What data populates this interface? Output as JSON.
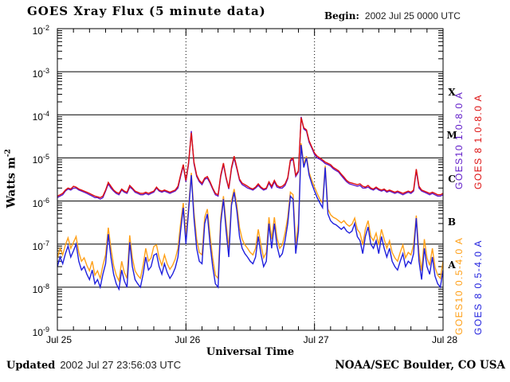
{
  "header": {
    "title": "GOES Xray Flux (5 minute data)",
    "begin_label": "Begin:",
    "begin_value": "2002 Jul 25 0000 UTC"
  },
  "footer": {
    "updated_label": "Updated",
    "updated_value": "2002 Jul 27 23:56:03 UTC",
    "credit": "NOAA/SEC Boulder, CO USA"
  },
  "chart_data": {
    "type": "line",
    "title": "GOES Xray Flux (5 minute data)",
    "xlabel": "Universal Time",
    "ylabel_text": "Watts m",
    "ylabel_sup": "-2",
    "y_scale": "log10",
    "ylim": [
      1e-09,
      0.01
    ],
    "y_tick_base": "10",
    "y_tick_exponents": [
      -2,
      -3,
      -4,
      -5,
      -6,
      -7,
      -8,
      -9
    ],
    "xlim_hours": [
      0,
      72
    ],
    "x_tick_hours": [
      0,
      24,
      48,
      72
    ],
    "x_tick_labels": [
      "Jul 25",
      "Jul 26",
      "Jul 27",
      "Jul 28"
    ],
    "minor_x_tick_interval_hours": 3,
    "day_boundary_lines_hours": [
      24,
      48
    ],
    "grid": "solid horizontal line per decade, dotted vertical line at day boundaries",
    "legend_position": "right side, rotated 90deg",
    "flux_classes": [
      {
        "label": "X",
        "center_exp": -3.5
      },
      {
        "label": "M",
        "center_exp": -4.5
      },
      {
        "label": "C",
        "center_exp": -5.5
      },
      {
        "label": "B",
        "center_exp": -6.5
      },
      {
        "label": "A",
        "center_exp": -7.5
      }
    ],
    "t_start_hours": 0,
    "dt_hours": 0.5,
    "series": [
      {
        "name": "GOES10 0.5-4.0 A",
        "color": "#ffa018",
        "values": [
          4.8e-08,
          8e-08,
          5.6e-08,
          9.6e-08,
          1.4e-07,
          8e-08,
          1.1e-07,
          1.5e-07,
          6.4e-08,
          4e-08,
          4.8e-08,
          3.2e-08,
          2.4e-08,
          4e-08,
          1.9e-08,
          2.4e-08,
          1.6e-08,
          3.2e-08,
          5.6e-08,
          2.4e-07,
          8e-08,
          3.2e-08,
          1.9e-08,
          1.4e-08,
          4e-08,
          2.2e-08,
          1.6e-08,
          1.6e-07,
          4.8e-08,
          2.4e-08,
          1.9e-08,
          1.6e-08,
          3.2e-08,
          8e-08,
          4e-08,
          4.8e-08,
          8.8e-08,
          9.6e-08,
          4.8e-08,
          3.2e-08,
          5.6e-08,
          3.5e-08,
          2.6e-08,
          3.2e-08,
          4.5e-08,
          8e-08,
          3e-07,
          9e-07,
          1.6e-07,
          7.5e-07,
          4.5e-06,
          5.5e-07,
          1.3e-07,
          6.4e-08,
          5.6e-08,
          4.2e-07,
          6.5e-07,
          1.6e-07,
          4.8e-08,
          1.9e-08,
          1.6e-08,
          4e-07,
          1.3e-06,
          3e-07,
          8e-08,
          1e-06,
          1.9e-06,
          8e-07,
          2.4e-07,
          1.3e-07,
          9.6e-08,
          8e-08,
          6.4e-08,
          5.6e-08,
          8e-08,
          2.2e-07,
          9.6e-08,
          4.8e-08,
          6.4e-08,
          4.2e-07,
          1.3e-07,
          4.2e-07,
          1.4e-07,
          8e-08,
          9.6e-08,
          1.8e-07,
          4.2e-07,
          1.6e-06,
          1.4e-06,
          9.6e-08,
          3e-07,
          2.2e-05,
          7e-06,
          1.1e-05,
          4.6e-06,
          3e-06,
          2.1e-06,
          1.5e-06,
          1.1e-06,
          9e-07,
          6.6e-06,
          6.5e-07,
          4.8e-07,
          4.2e-07,
          3.9e-07,
          3.5e-07,
          3.1e-07,
          3.5e-07,
          2.9e-07,
          2.6e-07,
          2.9e-07,
          4e-07,
          2.2e-07,
          1.8e-07,
          9.6e-08,
          2.2e-07,
          3.5e-07,
          1.5e-07,
          1.2e-07,
          1.8e-07,
          9.6e-08,
          2.2e-07,
          1.3e-07,
          8e-08,
          1.2e-07,
          6.4e-08,
          4.8e-08,
          4e-08,
          6.4e-08,
          9.6e-08,
          4.8e-08,
          6.4e-08,
          5.6e-08,
          9.6e-08,
          4.6e-07,
          6.4e-08,
          2.4e-08,
          1.3e-07,
          4.8e-08,
          3.2e-08,
          8e-08,
          2.9e-08,
          1.9e-08,
          1.6e-08,
          4e-08
        ]
      },
      {
        "name": "GOES 8 0.5-4.0 A",
        "color": "#2020dd",
        "values": [
          3e-08,
          5e-08,
          3.5e-08,
          6e-08,
          9e-08,
          5e-08,
          7e-08,
          1e-07,
          4e-08,
          2.5e-08,
          3e-08,
          2e-08,
          1.5e-08,
          2.5e-08,
          1.2e-08,
          1.5e-08,
          1e-08,
          2e-08,
          3.5e-08,
          1.7e-07,
          5e-08,
          2e-08,
          1.2e-08,
          9e-09,
          2.5e-08,
          1.4e-08,
          1e-08,
          1.1e-07,
          3e-08,
          1.5e-08,
          1.2e-08,
          1e-08,
          2e-08,
          5e-08,
          2.5e-08,
          3e-08,
          5.5e-08,
          6e-08,
          3e-08,
          2e-08,
          3.5e-08,
          2.2e-08,
          1.6e-08,
          2e-08,
          2.8e-08,
          5e-08,
          2e-07,
          7e-07,
          1e-07,
          6e-07,
          4e-06,
          4e-07,
          8e-08,
          4e-08,
          3.5e-08,
          3e-07,
          5e-07,
          1e-07,
          3e-08,
          1.2e-08,
          1e-08,
          3e-07,
          1.1e-06,
          2e-07,
          5e-08,
          8e-07,
          1.6e-06,
          6e-07,
          1.5e-07,
          8e-08,
          6e-08,
          5e-08,
          4e-08,
          3.5e-08,
          5e-08,
          1.5e-07,
          6e-08,
          3e-08,
          4e-08,
          3e-07,
          8e-08,
          3e-07,
          9e-08,
          5e-08,
          6e-08,
          1.2e-07,
          3e-07,
          1.3e-06,
          1.1e-06,
          6e-08,
          2e-07,
          2e-05,
          6e-06,
          1e-05,
          4e-06,
          2.5e-06,
          1.7e-06,
          1.2e-06,
          9e-07,
          7e-07,
          6e-06,
          5e-07,
          3.5e-07,
          3e-07,
          2.8e-07,
          2.5e-07,
          2.2e-07,
          2.5e-07,
          2e-07,
          1.8e-07,
          2e-07,
          3e-07,
          1.5e-07,
          1.2e-07,
          6e-08,
          1.5e-07,
          2.5e-07,
          1e-07,
          8e-08,
          1.2e-07,
          6e-08,
          1.5e-07,
          8e-08,
          5e-08,
          8e-08,
          4e-08,
          3e-08,
          2.5e-08,
          4e-08,
          6e-08,
          3e-08,
          4e-08,
          3.5e-08,
          6e-08,
          4e-07,
          4e-08,
          1.5e-08,
          8e-08,
          3e-08,
          2e-08,
          5e-08,
          1.8e-08,
          1.2e-08,
          1e-08,
          2.5e-08
        ]
      },
      {
        "name": "GOES10 1.0-8.0 A",
        "color": "#5e18c8",
        "values": [
          1.2e-06,
          1.3e-06,
          1.4e-06,
          1.7e-06,
          1.9e-06,
          1.8e-06,
          2e-06,
          2e-06,
          1.8e-06,
          1.7e-06,
          1.6e-06,
          1.5e-06,
          1.4e-06,
          1.3e-06,
          1.2e-06,
          1.2e-06,
          1.1e-06,
          1.2e-06,
          1.7e-06,
          2.5e-06,
          2e-06,
          1.7e-06,
          1.5e-06,
          1.4e-06,
          1.8e-06,
          1.6e-06,
          1.5e-06,
          2.1e-06,
          1.9e-06,
          1.6e-06,
          1.5e-06,
          1.4e-06,
          1.4e-06,
          1.5e-06,
          1.4e-06,
          1.5e-06,
          1.6e-06,
          2e-06,
          1.7e-06,
          1.6e-06,
          1.7e-06,
          1.6e-06,
          1.5e-06,
          1.6e-06,
          1.7e-06,
          2e-06,
          3.7e-06,
          6.5e-06,
          2.8e-06,
          7.4e-06,
          4.2e-05,
          7.4e-06,
          3.7e-06,
          2.8e-06,
          2.4e-06,
          3.2e-06,
          3.4e-06,
          2.6e-06,
          1.9e-06,
          1.4e-06,
          1.3e-06,
          3.7e-06,
          7.1e-06,
          3.3e-06,
          1.9e-06,
          5.6e-06,
          1e-05,
          5.6e-06,
          3e-06,
          2.4e-06,
          2.2e-06,
          2e-06,
          1.9e-06,
          1.8e-06,
          2e-06,
          2.3e-06,
          2e-06,
          1.8e-06,
          1.9e-06,
          2.6e-06,
          2e-06,
          2.8e-06,
          2.1e-06,
          2e-06,
          2e-06,
          2.3e-06,
          3.3e-06,
          8.4e-06,
          9.3e-06,
          3.7e-06,
          4.7e-06,
          9e-05,
          4.7e-05,
          4.2e-05,
          2.3e-05,
          1.7e-05,
          1.2e-05,
          1e-05,
          9.3e-06,
          8.4e-06,
          7.4e-06,
          7e-06,
          6.5e-06,
          5.6e-06,
          5.1e-06,
          4.7e-06,
          3.9e-06,
          3.3e-06,
          2.8e-06,
          2.5e-06,
          2.4e-06,
          2.3e-06,
          2.2e-06,
          2.3e-06,
          2e-06,
          2e-06,
          2.1e-06,
          1.9e-06,
          1.8e-06,
          2e-06,
          1.8e-06,
          1.7e-06,
          1.8e-06,
          1.6e-06,
          1.7e-06,
          1.6e-06,
          1.5e-06,
          1.6e-06,
          1.5e-06,
          1.4e-06,
          1.5e-06,
          1.6e-06,
          1.5e-06,
          1.7e-06,
          5.1e-06,
          2e-06,
          1.7e-06,
          1.6e-06,
          1.5e-06,
          1.4e-06,
          1.5e-06,
          1.4e-06,
          1.3e-06,
          1.3e-06,
          1.4e-06
        ]
      },
      {
        "name": "GOES 8 1.0-8.0 A",
        "color": "#dd1010",
        "values": [
          1.3e-06,
          1.4e-06,
          1.5e-06,
          1.8e-06,
          2e-06,
          1.9e-06,
          2.2e-06,
          2.1e-06,
          1.9e-06,
          1.8e-06,
          1.7e-06,
          1.6e-06,
          1.5e-06,
          1.4e-06,
          1.3e-06,
          1.25e-06,
          1.2e-06,
          1.3e-06,
          1.8e-06,
          2.7e-06,
          2.2e-06,
          1.8e-06,
          1.6e-06,
          1.5e-06,
          1.9e-06,
          1.7e-06,
          1.6e-06,
          2.3e-06,
          2e-06,
          1.7e-06,
          1.6e-06,
          1.5e-06,
          1.5e-06,
          1.6e-06,
          1.5e-06,
          1.6e-06,
          1.7e-06,
          2.1e-06,
          1.8e-06,
          1.7e-06,
          1.8e-06,
          1.7e-06,
          1.6e-06,
          1.7e-06,
          1.8e-06,
          2.2e-06,
          4e-06,
          7e-06,
          3e-06,
          8e-06,
          3.8e-05,
          8e-06,
          4e-06,
          3e-06,
          2.6e-06,
          3.4e-06,
          3.7e-06,
          2.8e-06,
          2e-06,
          1.5e-06,
          1.4e-06,
          4e-06,
          7.6e-06,
          3.5e-06,
          2e-06,
          6e-06,
          1.1e-05,
          6e-06,
          3.2e-06,
          2.6e-06,
          2.4e-06,
          2.2e-06,
          2e-06,
          1.9e-06,
          2.1e-06,
          2.5e-06,
          2.1e-06,
          1.9e-06,
          2e-06,
          2.8e-06,
          2.2e-06,
          3e-06,
          2.3e-06,
          2.1e-06,
          2.2e-06,
          2.5e-06,
          3.5e-06,
          9e-06,
          1e-05,
          4e-06,
          5e-06,
          8.6e-05,
          5e-05,
          4.5e-05,
          2.5e-05,
          1.8e-05,
          1.3e-05,
          1.1e-05,
          1e-05,
          9e-06,
          8e-06,
          7.5e-06,
          7e-06,
          6e-06,
          5.5e-06,
          5e-06,
          4.2e-06,
          3.6e-06,
          3e-06,
          2.7e-06,
          2.6e-06,
          2.5e-06,
          2.4e-06,
          2.5e-06,
          2.2e-06,
          2.1e-06,
          2.3e-06,
          2e-06,
          1.9e-06,
          2.1e-06,
          1.9e-06,
          1.8e-06,
          1.9e-06,
          1.7e-06,
          1.8e-06,
          1.7e-06,
          1.6e-06,
          1.7e-06,
          1.6e-06,
          1.5e-06,
          1.6e-06,
          1.7e-06,
          1.6e-06,
          1.8e-06,
          5.5e-06,
          2.2e-06,
          1.8e-06,
          1.7e-06,
          1.6e-06,
          1.5e-06,
          1.6e-06,
          1.5e-06,
          1.4e-06,
          1.4e-06,
          1.5e-06
        ]
      }
    ]
  }
}
